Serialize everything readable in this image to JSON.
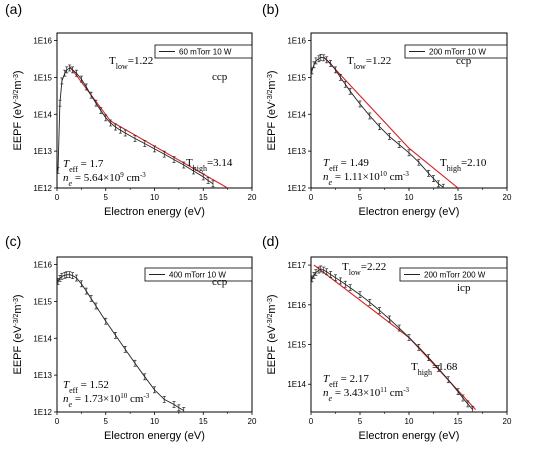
{
  "chart_data": [
    {
      "type": "line",
      "panel": "(a)",
      "xlabel": "Electron energy (eV)",
      "ylabel": "EEPF (eV^-3/2 m^-3)",
      "ylabel_main": "EEPF (eV",
      "ylabel_sup1": "-3/2",
      "ylabel_mid": "m",
      "ylabel_sup2": "-3",
      "ylabel_end": ")",
      "xlim": [
        0,
        20
      ],
      "ylim": [
        1000000000000.0,
        1.6e+16
      ],
      "xticks": [
        "0",
        "5",
        "10",
        "15",
        "20"
      ],
      "yticks": [
        "1E12",
        "1E13",
        "1E14",
        "1E15",
        "1E16"
      ],
      "legend": "60 mTorr 10 W",
      "mode": "ccp",
      "series": [
        {
          "name": "60 mTorr 10 W",
          "x": [
            0.1,
            0.3,
            0.5,
            0.8,
            1.0,
            1.3,
            1.6,
            2.0,
            2.5,
            3.0,
            3.5,
            4.0,
            4.5,
            5.0,
            5.5,
            6.0,
            6.5,
            7.0,
            8.0,
            9.0,
            10.0,
            11.0,
            12.0,
            13.0,
            14.0,
            15.0,
            15.5,
            16.0
          ],
          "y": [
            3000000000000.0,
            200000000000000.0,
            800000000000000.0,
            1300000000000000.0,
            1600000000000000.0,
            1800000000000000.0,
            1600000000000000.0,
            1300000000000000.0,
            900000000000000.0,
            550000000000000.0,
            330000000000000.0,
            200000000000000.0,
            125000000000000.0,
            80000000000000.0,
            58000000000000.0,
            45000000000000.0,
            37000000000000.0,
            31000000000000.0,
            22000000000000.0,
            16000000000000.0,
            11500000000000.0,
            8300000000000.0,
            5900000000000.0,
            4200000000000.0,
            2900000000000.0,
            2000000000000.0,
            1600000000000.0,
            1300000000000.0
          ]
        }
      ],
      "fits": [
        {
          "x": [
            1.3,
            5.5
          ],
          "y": [
            2000000000000000.0,
            65000000000000.0
          ]
        },
        {
          "x": [
            5.5,
            17.5
          ],
          "y": [
            65000000000000.0,
            1000000000000.0
          ]
        }
      ],
      "annotations": {
        "t_low": "1.22",
        "t_high": "3.14",
        "t_eff": "1.7",
        "n_e_mant": "5.64",
        "n_e_exp": "9"
      }
    },
    {
      "type": "line",
      "panel": "(b)",
      "xlabel": "Electron energy (eV)",
      "ylabel": "EEPF (eV^-3/2 m^-3)",
      "ylabel_main": "EEPF (eV",
      "ylabel_sup1": "-3/2",
      "ylabel_mid": "m",
      "ylabel_sup2": "-3",
      "ylabel_end": ")",
      "xlim": [
        0,
        20
      ],
      "ylim": [
        1000000000000.0,
        1.6e+16
      ],
      "xticks": [
        "0",
        "5",
        "10",
        "15",
        "20"
      ],
      "yticks": [
        "1E12",
        "1E13",
        "1E14",
        "1E15",
        "1E16"
      ],
      "legend": "200 mTorr 10 W",
      "mode": "ccp",
      "series": [
        {
          "name": "200 mTorr 10 W",
          "x": [
            0.1,
            0.3,
            0.5,
            0.8,
            1.0,
            1.3,
            1.6,
            2.0,
            2.5,
            3.0,
            3.5,
            4.0,
            5.0,
            6.0,
            7.0,
            8.0,
            9.0,
            10.0,
            11.0,
            12.0,
            12.5,
            13.0,
            13.5
          ],
          "y": [
            1500000000000000.0,
            2200000000000000.0,
            2800000000000000.0,
            3200000000000000.0,
            3500000000000000.0,
            3400000000000000.0,
            3000000000000000.0,
            2400000000000000.0,
            1600000000000000.0,
            1000000000000000.0,
            650000000000000.0,
            420000000000000.0,
            190000000000000.0,
            90000000000000.0,
            46000000000000.0,
            25000000000000.0,
            15000000000000.0,
            9000000000000.0,
            5000000000000.0,
            2500000000000.0,
            1800000000000.0,
            1300000000000.0,
            1050000000000.0
          ]
        }
      ],
      "fits": [
        {
          "x": [
            1.3,
            10.0
          ],
          "y": [
            3600000000000000.0,
            12000000000000.0
          ]
        },
        {
          "x": [
            10.0,
            15.0
          ],
          "y": [
            12000000000000.0,
            1000000000000.0
          ]
        }
      ],
      "annotations": {
        "t_low": "1.22",
        "t_high": "2.10",
        "t_eff": "1.49",
        "n_e_mant": "1.11",
        "n_e_exp": "10"
      }
    },
    {
      "type": "line",
      "panel": "(c)",
      "xlabel": "Electron energy (eV)",
      "ylabel": "EEPF (eV^-3/2 m^-3)",
      "ylabel_main": "EEPF (eV",
      "ylabel_sup1": "-3/2",
      "ylabel_mid": "m",
      "ylabel_sup2": "-3",
      "ylabel_end": ")",
      "xlim": [
        0,
        20
      ],
      "ylim": [
        1000000000000.0,
        1.6e+16
      ],
      "xticks": [
        "0",
        "5",
        "10",
        "15",
        "20"
      ],
      "yticks": [
        "1E12",
        "1E13",
        "1E14",
        "1E15",
        "1E16"
      ],
      "legend": "400 mTorr 10 W",
      "mode": "ccp",
      "series": [
        {
          "name": "400 mTorr 10 W",
          "x": [
            0.1,
            0.3,
            0.5,
            0.8,
            1.0,
            1.3,
            1.6,
            2.0,
            2.5,
            3.0,
            3.5,
            4.0,
            5.0,
            6.0,
            7.0,
            8.0,
            9.0,
            10.0,
            11.0,
            12.0,
            12.5,
            13.0
          ],
          "y": [
            3500000000000000.0,
            4200000000000000.0,
            4800000000000000.0,
            5100000000000000.0,
            5300000000000000.0,
            5300000000000000.0,
            5000000000000000.0,
            4300000000000000.0,
            3000000000000000.0,
            1900000000000000.0,
            1200000000000000.0,
            750000000000000.0,
            290000000000000.0,
            120000000000000.0,
            50000000000000.0,
            21000000000000.0,
            9000000000000.0,
            4000000000000.0,
            2200000000000.0,
            1600000000000.0,
            1300000000000.0,
            1100000000000.0
          ]
        }
      ],
      "fits": [],
      "annotations": {
        "t_eff": "1.52",
        "n_e_mant": "1.73",
        "n_e_exp": "10"
      }
    },
    {
      "type": "line",
      "panel": "(d)",
      "xlabel": "Electron energy (eV)",
      "ylabel": "EEPF (eV^-3/2 m^-3)",
      "ylabel_main": "EEPF (eV",
      "ylabel_sup1": "-3/2",
      "ylabel_mid": "m",
      "ylabel_sup2": "-3",
      "ylabel_end": ")",
      "xlim": [
        0,
        20
      ],
      "ylim": [
        20000000000000.0,
        1.6e+17
      ],
      "xticks": [
        "0",
        "5",
        "10",
        "15",
        "20"
      ],
      "yticks": [
        "1E14",
        "1E15",
        "1E16",
        "1E17"
      ],
      "legend": "200 mTorr 200 W",
      "mode": "icp",
      "series": [
        {
          "name": "200 mTorr 200 W",
          "x": [
            0.1,
            0.3,
            0.5,
            0.8,
            1.0,
            1.3,
            1.6,
            2.0,
            2.5,
            3.0,
            3.5,
            4.0,
            5.0,
            6.0,
            7.0,
            8.0,
            9.0,
            10.0,
            11.0,
            12.0,
            13.0,
            14.0,
            15.0,
            15.5,
            16.0,
            16.5
          ],
          "y": [
            4.5e+16,
            5.5e+16,
            6.5e+16,
            7.5e+16,
            8e+16,
            7.5e+16,
            6.8e+16,
            5.8e+16,
            4.8e+16,
            4e+16,
            3.3e+16,
            2.7e+16,
            1.8e+16,
            1.15e+16,
            7200000000000000.0,
            4400000000000000.0,
            2600000000000000.0,
            1500000000000000.0,
            850000000000000.0,
            470000000000000.0,
            250000000000000.0,
            130000000000000.0,
            65000000000000.0,
            45000000000000.0,
            32000000000000.0,
            23000000000000.0
          ]
        }
      ],
      "fits": [
        {
          "x": [
            0.3,
            10.0
          ],
          "y": [
            1e+17,
            1500000000000000.0
          ]
        },
        {
          "x": [
            10.0,
            16.8
          ],
          "y": [
            1500000000000000.0,
            23000000000000.0
          ]
        }
      ],
      "annotations": {
        "t_low": "2.22",
        "t_high": "1.68",
        "t_eff": "2.17",
        "n_e_mant": "3.43",
        "n_e_exp": "11"
      }
    }
  ],
  "colors": {
    "data": "#222222",
    "fit": "#d62020",
    "axis": "#000000"
  },
  "common": {
    "low_sub": "low",
    "high_sub": "high",
    "eff_sub": "eff",
    "t_letter": "T",
    "n_letter": "n",
    "e_sub": "e",
    "times_ten": "×10",
    "density_unit": "cm",
    "density_unit_sup": "-3"
  }
}
